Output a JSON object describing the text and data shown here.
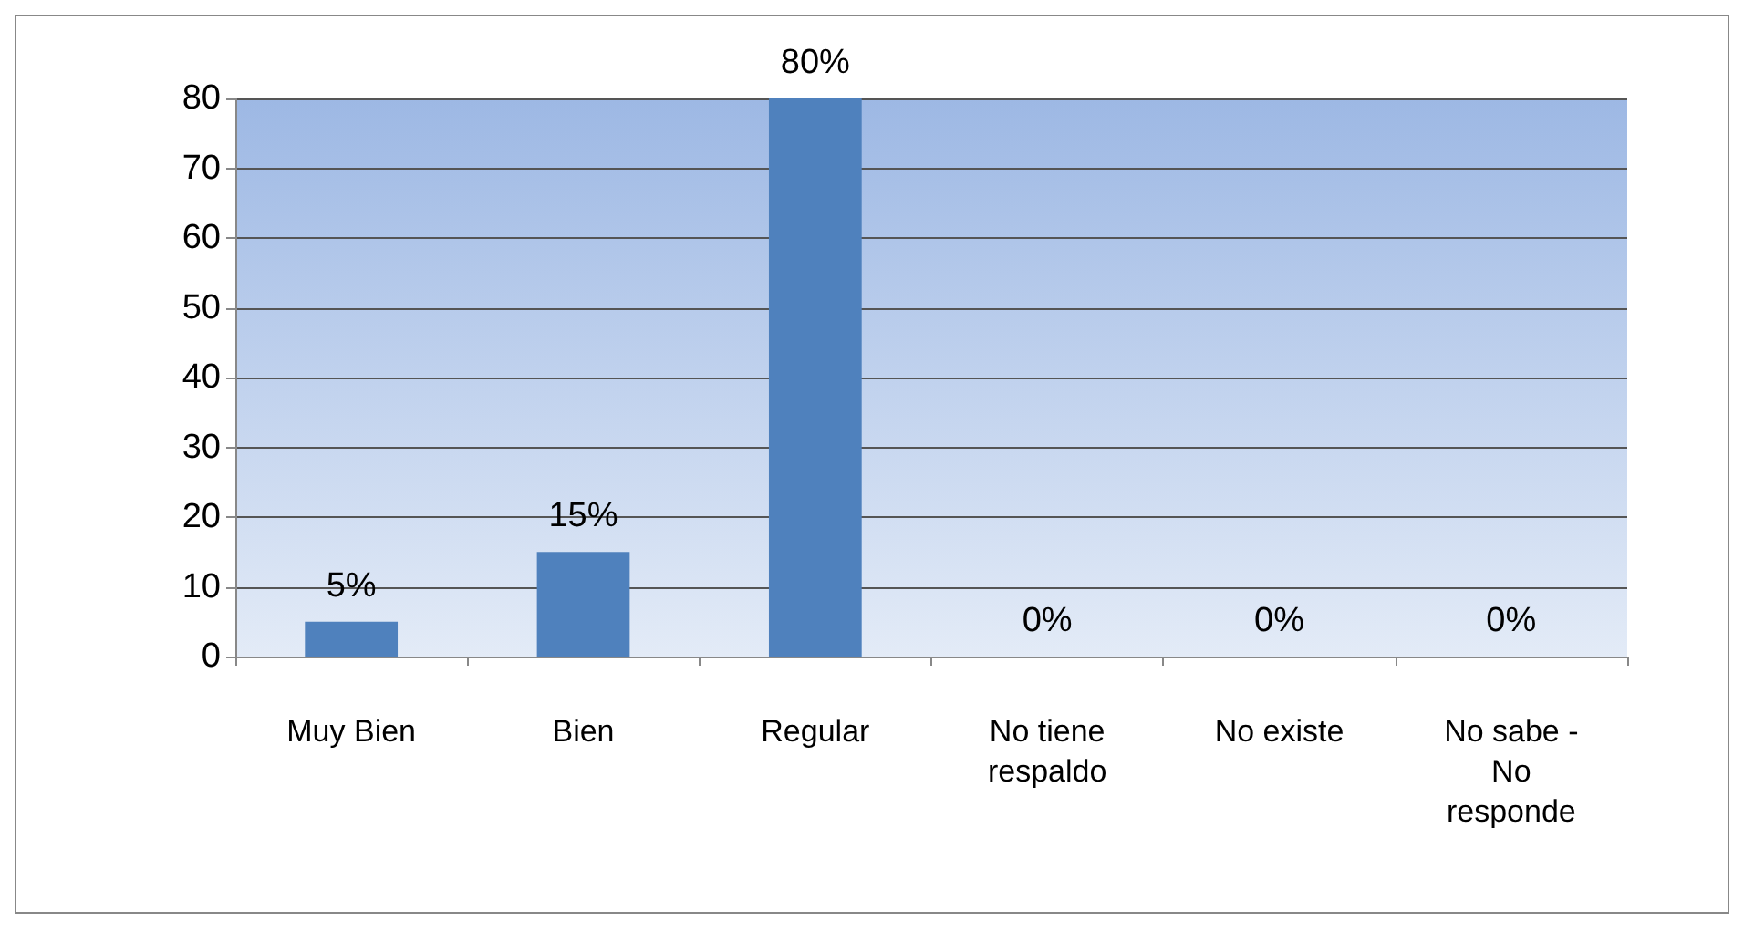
{
  "chart_data": {
    "type": "bar",
    "categories": [
      "Muy Bien",
      "Bien",
      "Regular",
      "No tiene\nrespaldo",
      "No existe",
      "No sabe -\nNo\nresponde"
    ],
    "values": [
      5,
      15,
      80,
      0,
      0,
      0
    ],
    "value_labels": [
      "5%",
      "15%",
      "80%",
      "0%",
      "0%",
      "0%"
    ],
    "color": "#4f81bd",
    "ylim": [
      0,
      80
    ],
    "yticks": [
      0,
      10,
      20,
      30,
      40,
      50,
      60,
      70,
      80
    ],
    "grid": "y"
  }
}
